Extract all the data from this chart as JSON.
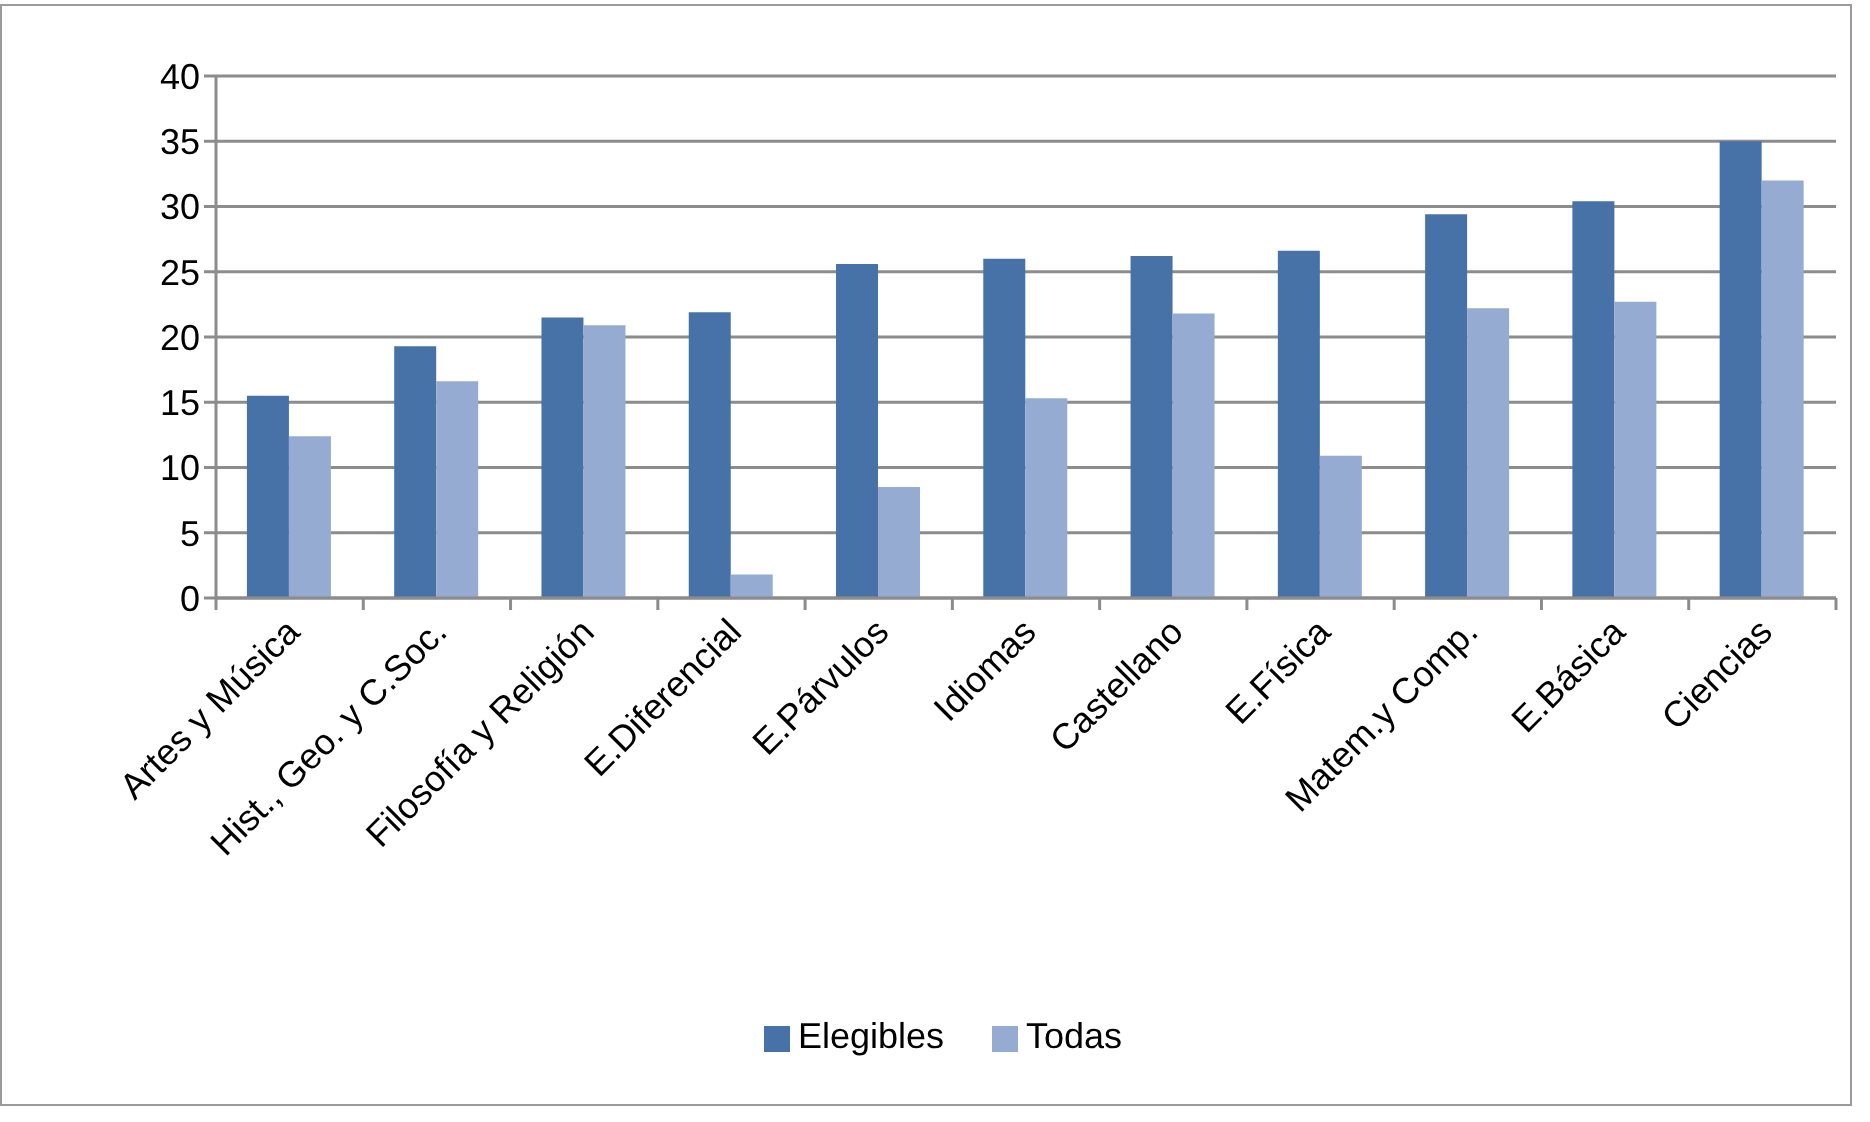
{
  "chart_data": {
    "type": "bar",
    "categories": [
      "Artes y Música",
      "Hist., Geo. y C.Soc.",
      "Filosofía y Religión",
      "E.Diferencial",
      "E.Párvulos",
      "Idiomas",
      "Castellano",
      "E.Física",
      "Matem.y Comp.",
      "E.Básica",
      "Ciencias"
    ],
    "series": [
      {
        "name": "Elegibles",
        "color": "#4672a8",
        "values": [
          15.5,
          19.3,
          21.5,
          21.9,
          25.6,
          26.0,
          26.2,
          26.6,
          29.4,
          30.4,
          35.0
        ]
      },
      {
        "name": "Todas",
        "color": "#95abd2",
        "values": [
          12.4,
          16.6,
          20.9,
          1.8,
          8.5,
          15.3,
          21.8,
          10.9,
          22.2,
          22.7,
          32.0
        ]
      }
    ],
    "ylim": [
      0,
      40
    ],
    "yticks": [
      0,
      5,
      10,
      15,
      20,
      25,
      30,
      35,
      40
    ],
    "grid": "y",
    "legend": "bottom"
  }
}
